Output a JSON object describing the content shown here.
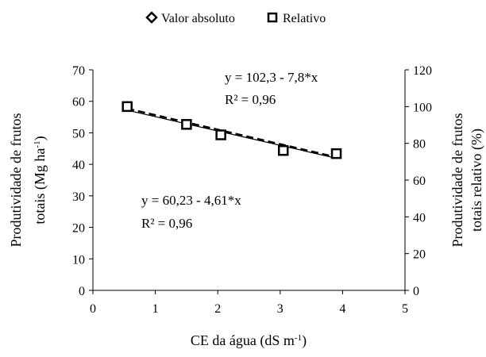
{
  "chart_data": {
    "type": "scatter",
    "legend": {
      "placement": "top-center",
      "entries": [
        {
          "marker": "diamond",
          "label": "Valor absoluto"
        },
        {
          "marker": "square",
          "label": "Relativo"
        }
      ]
    },
    "x": [
      0.55,
      1.5,
      2.05,
      3.05,
      3.9
    ],
    "xlabel": "CE da água (dS m-1)",
    "xlim": [
      0,
      5
    ],
    "xticks": [
      "0",
      "1",
      "2",
      "3",
      "4",
      "5"
    ],
    "y_left": {
      "label_line1": "Produtividade de frutos",
      "label_line2": "totais (Mg ha-1)",
      "lim": [
        0,
        70
      ],
      "ticks": [
        "0",
        "10",
        "20",
        "30",
        "40",
        "50",
        "60",
        "70"
      ]
    },
    "y_right": {
      "label_line1": "Produtividade de frutos",
      "label_line2": "totais relativo (%)",
      "lim": [
        0,
        120
      ],
      "ticks": [
        "0",
        "20",
        "40",
        "60",
        "80",
        "100",
        "120"
      ]
    },
    "series": [
      {
        "name": "Valor absoluto",
        "axis": "left",
        "marker": "diamond",
        "values": [
          58.5,
          52.8,
          49.5,
          44.5,
          43.5
        ],
        "trend": {
          "type": "linear",
          "intercept": 60.23,
          "slope": -4.61,
          "style": "dashed"
        },
        "equation": "y = 60,23 - 4,61*x",
        "r2": "R² = 0,96"
      },
      {
        "name": "Relativo",
        "axis": "right",
        "marker": "square",
        "values": [
          100,
          90.3,
          84.6,
          76.1,
          74.4
        ],
        "trend": {
          "type": "linear",
          "intercept": 102.3,
          "slope": -7.8,
          "style": "solid"
        },
        "equation": "y = 102,3 - 7,8*x",
        "r2": "R² = 0,96"
      }
    ],
    "grid": false
  }
}
